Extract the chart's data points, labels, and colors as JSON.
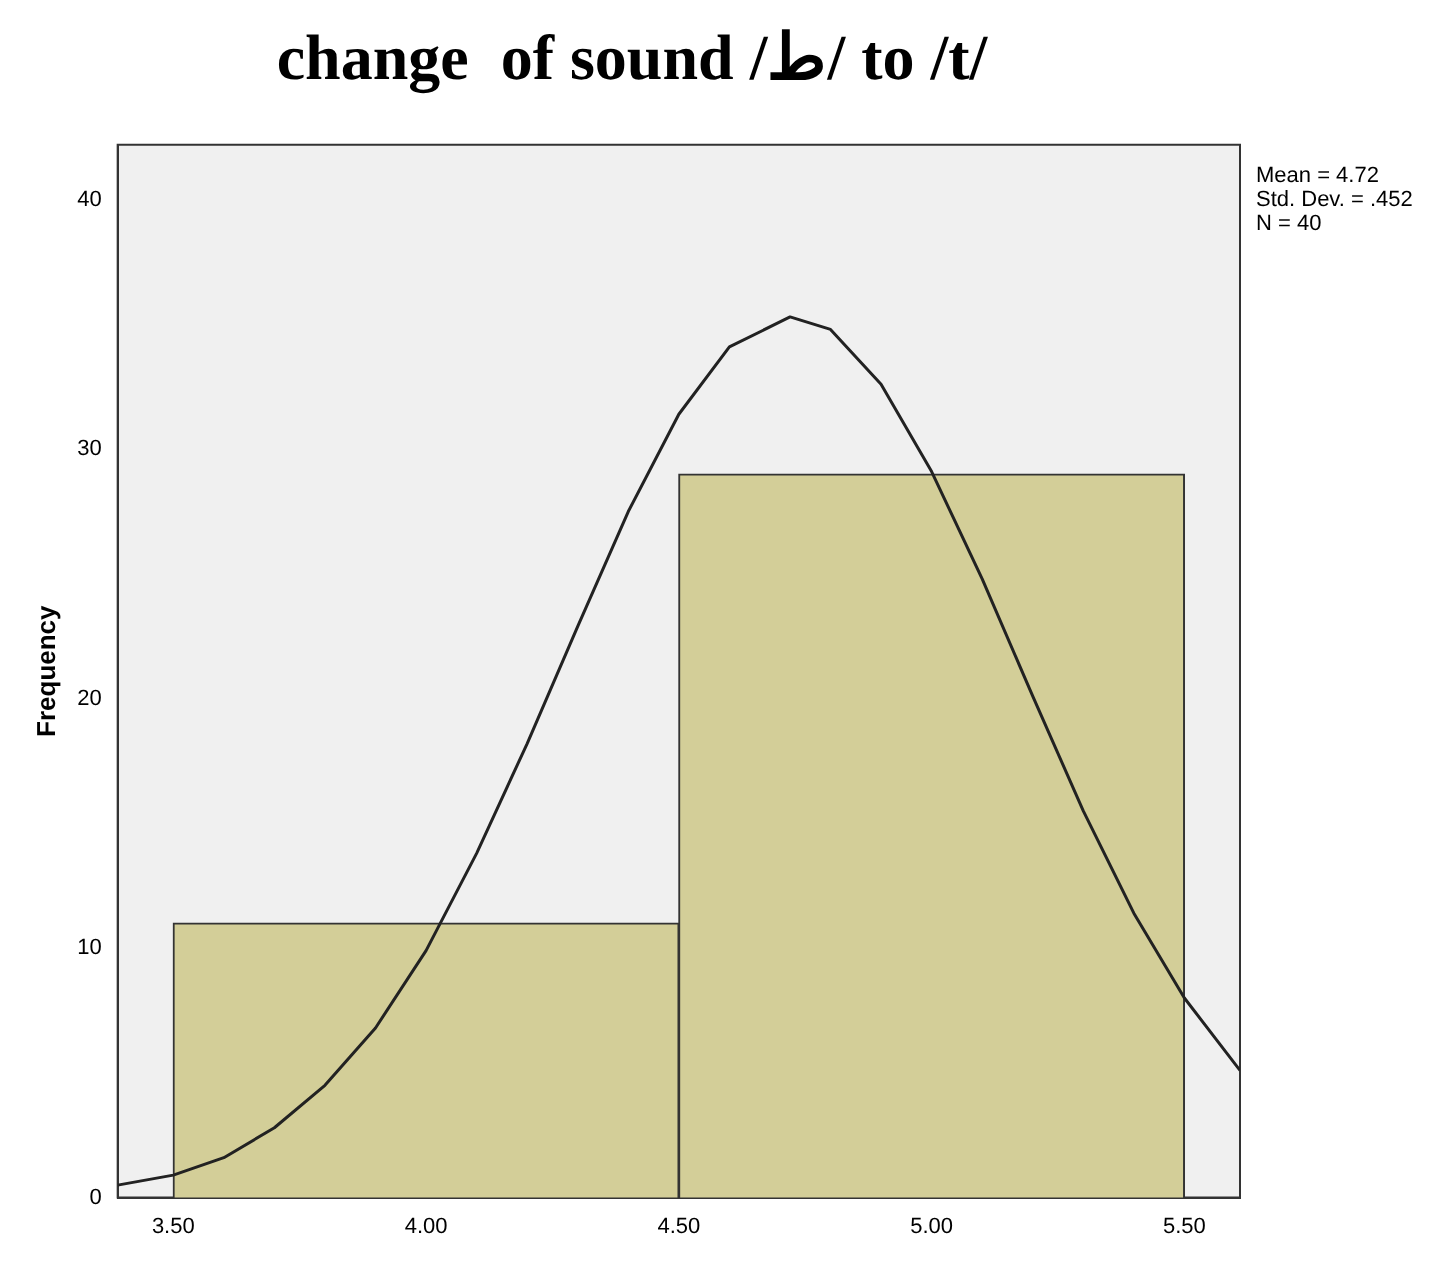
{
  "chart_data": {
    "type": "histogram",
    "title": "change  of sound /ط/ to /t/",
    "ylabel": "Frequency",
    "bins": [
      3.5,
      4.5,
      5.5
    ],
    "values": [
      11,
      29
    ],
    "color": "#d3ce98",
    "series": [
      {
        "type": "line",
        "color": "#222222",
        "x": [
          3.39,
          3.5,
          3.6,
          3.7,
          3.8,
          3.9,
          4.0,
          4.1,
          4.2,
          4.3,
          4.4,
          4.5,
          4.6,
          4.72,
          4.8,
          4.9,
          5.0,
          5.1,
          5.2,
          5.3,
          5.4,
          5.5,
          5.61
        ],
        "values": [
          0.5,
          0.9,
          1.6,
          2.8,
          4.5,
          6.8,
          9.9,
          13.8,
          18.2,
          22.9,
          27.5,
          31.4,
          34.1,
          35.3,
          34.8,
          32.6,
          29.1,
          24.8,
          20.1,
          15.5,
          11.4,
          8.0,
          5.1
        ]
      }
    ],
    "xlim": [
      3.39,
      5.61
    ],
    "ylim": [
      0,
      42.2
    ],
    "xticks": [
      {
        "value": 3.5,
        "label": "3.50"
      },
      {
        "value": 4,
        "label": "4.00"
      },
      {
        "value": 4.5,
        "label": "4.50"
      },
      {
        "value": 5,
        "label": "5.00"
      },
      {
        "value": 5.5,
        "label": "5.50"
      }
    ],
    "yticks": [
      0,
      10,
      20,
      30,
      40
    ],
    "annotations": [
      "Mean = 4.72",
      "Std. Dev. = .452",
      "N = 40"
    ],
    "grid": false,
    "legend": false,
    "marker": "none"
  }
}
